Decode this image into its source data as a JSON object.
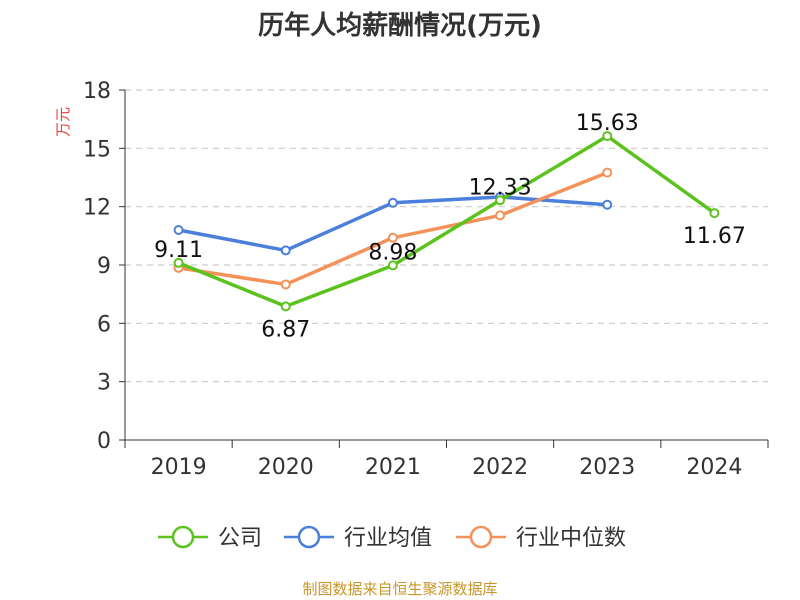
{
  "chart_data": {
    "type": "line",
    "title": "历年人均薪酬情况(万元)",
    "ylabel": "万元",
    "xlabel": "",
    "categories": [
      "2019",
      "2020",
      "2021",
      "2022",
      "2023",
      "2024"
    ],
    "ylim": [
      0,
      18
    ],
    "yticks": [
      0,
      3,
      6,
      9,
      12,
      15,
      18
    ],
    "grid": true,
    "legend_position": "bottom",
    "series": [
      {
        "name": "公司",
        "color": "#5cc21e",
        "values": [
          9.11,
          6.87,
          8.98,
          12.33,
          15.63,
          11.67
        ],
        "labels": [
          "9.11",
          "6.87",
          "8.98",
          "12.33",
          "15.63",
          "11.67"
        ]
      },
      {
        "name": "行业均值",
        "color": "#4b7fdb",
        "values": [
          10.8,
          9.75,
          12.2,
          12.5,
          12.1,
          null
        ]
      },
      {
        "name": "行业中位数",
        "color": "#f4925a",
        "values": [
          8.85,
          8.0,
          10.4,
          11.55,
          13.75,
          null
        ]
      }
    ],
    "source": "制图数据来自恒生聚源数据库"
  },
  "colors": {
    "title": "#333333",
    "ylabel": "#e0443a",
    "axis": "#333333",
    "grid": "#cccccc",
    "source": "#c8962a"
  }
}
